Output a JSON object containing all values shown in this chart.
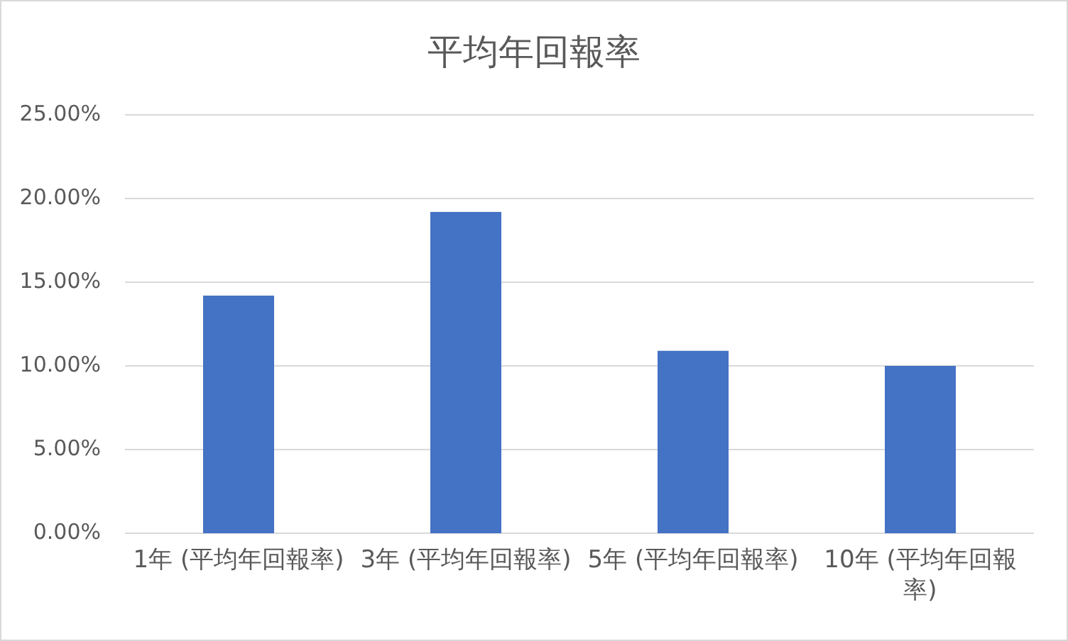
{
  "chart_data": {
    "type": "bar",
    "title": "平均年回報率",
    "categories": [
      "1年 (平均年回報率)",
      "3年 (平均年回報率)",
      "5年 (平均年回報率)",
      "10年 (平均年回報率)"
    ],
    "values": [
      14.2,
      19.2,
      10.9,
      10.0
    ],
    "color": "#4472c4",
    "ylim": [
      0,
      25
    ],
    "yticks": [
      {
        "value": 0,
        "label": "0.00%"
      },
      {
        "value": 5,
        "label": "5.00%"
      },
      {
        "value": 10,
        "label": "10.00%"
      },
      {
        "value": 15,
        "label": "15.00%"
      },
      {
        "value": 20,
        "label": "20.00%"
      },
      {
        "value": 25,
        "label": "25.00%"
      }
    ],
    "grid": "y"
  }
}
